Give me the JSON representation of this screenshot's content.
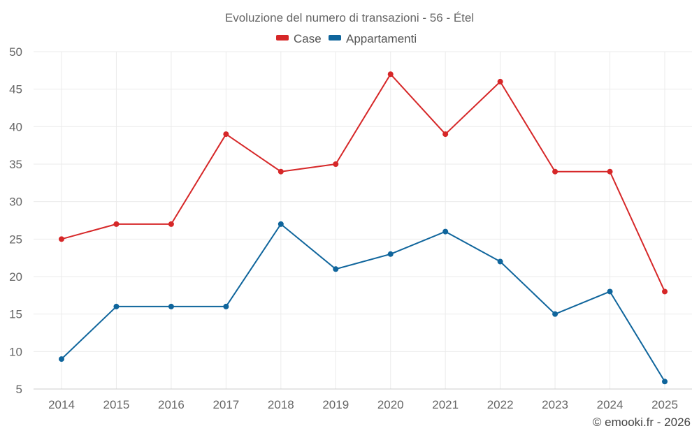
{
  "chart_data": {
    "type": "line",
    "title": "Evoluzione del numero di transazioni - 56 - Étel",
    "xlabel": "",
    "ylabel": "",
    "categories": [
      "2014",
      "2015",
      "2016",
      "2017",
      "2018",
      "2019",
      "2020",
      "2021",
      "2022",
      "2023",
      "2024",
      "2025"
    ],
    "ylim": [
      5,
      50
    ],
    "yticks": [
      5,
      10,
      15,
      20,
      25,
      30,
      35,
      40,
      45,
      50
    ],
    "grid": true,
    "legend_position": "top-center",
    "series": [
      {
        "name": "Case",
        "color": "#d62728",
        "values": [
          25,
          27,
          27,
          39,
          34,
          35,
          47,
          39,
          46,
          34,
          34,
          18
        ]
      },
      {
        "name": "Appartamenti",
        "color": "#0f659c",
        "values": [
          9,
          16,
          16,
          16,
          27,
          21,
          23,
          26,
          22,
          15,
          18,
          6
        ]
      }
    ]
  },
  "credit": "© emooki.fr - 2026"
}
